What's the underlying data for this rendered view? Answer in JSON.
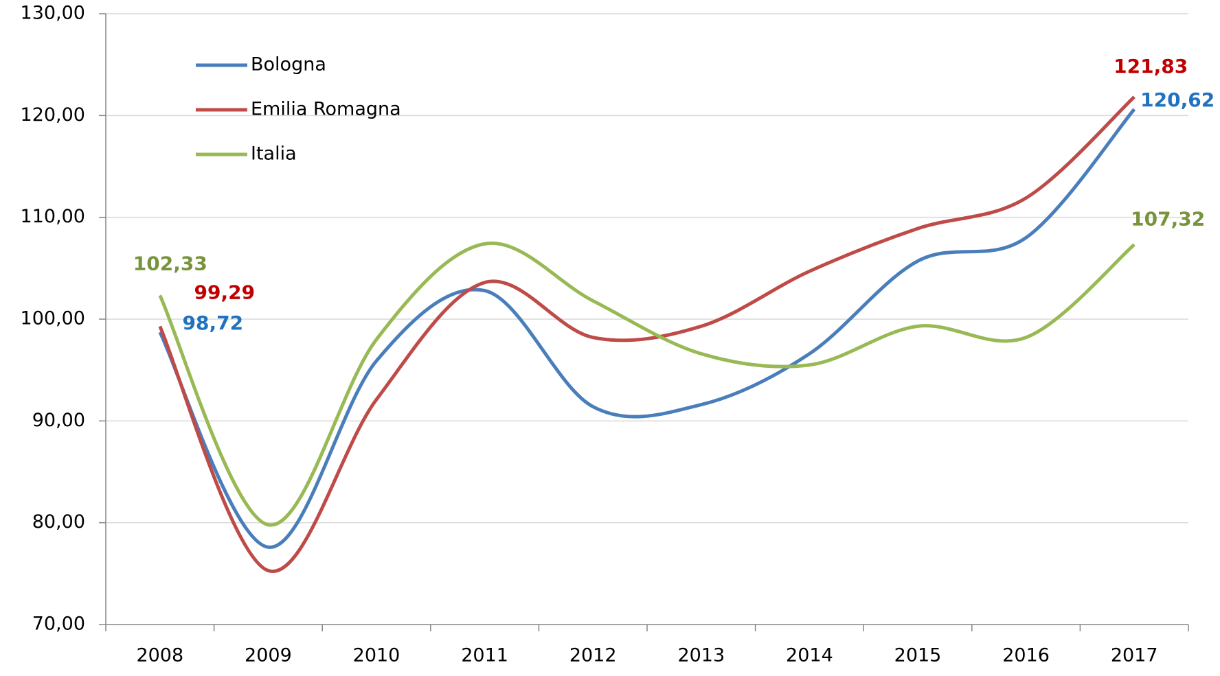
{
  "chart_data": {
    "type": "line",
    "categories": [
      "2008",
      "2009",
      "2010",
      "2011",
      "2012",
      "2013",
      "2014",
      "2015",
      "2016",
      "2017"
    ],
    "series": [
      {
        "name": "Bologna",
        "color": "#4a7ebb",
        "label_color": "#1f72c0",
        "values": [
          98.72,
          77.6,
          95.9,
          102.8,
          91.4,
          91.6,
          96.6,
          105.7,
          108.0,
          120.62
        ],
        "value_labels": [
          "98,72",
          null,
          null,
          null,
          null,
          null,
          null,
          null,
          null,
          "120,62"
        ]
      },
      {
        "name": "Emilia Romagna",
        "color": "#be4b48",
        "label_color": "#c00000",
        "values": [
          99.29,
          75.3,
          92.1,
          103.6,
          98.2,
          99.3,
          104.7,
          108.9,
          111.9,
          121.83
        ],
        "value_labels": [
          "99,29",
          null,
          null,
          null,
          null,
          null,
          null,
          null,
          null,
          "121,83"
        ]
      },
      {
        "name": "Italia",
        "color": "#98b954",
        "label_color": "#77933c",
        "values": [
          102.33,
          79.8,
          98.0,
          107.4,
          101.8,
          96.6,
          95.5,
          99.3,
          98.2,
          107.32
        ],
        "value_labels": [
          "102,33",
          null,
          null,
          null,
          null,
          null,
          null,
          null,
          null,
          "107,32"
        ]
      }
    ],
    "ylim": [
      70,
      130
    ],
    "yticks": [
      {
        "value": 70,
        "label": "70,00"
      },
      {
        "value": 80,
        "label": "80,00"
      },
      {
        "value": 90,
        "label": "90,00"
      },
      {
        "value": 100,
        "label": "100,00"
      },
      {
        "value": 110,
        "label": "110,00"
      },
      {
        "value": 120,
        "label": "120,00"
      },
      {
        "value": 130,
        "label": "130,00"
      }
    ],
    "grid": true,
    "smooth": true,
    "legend": "top-left"
  }
}
